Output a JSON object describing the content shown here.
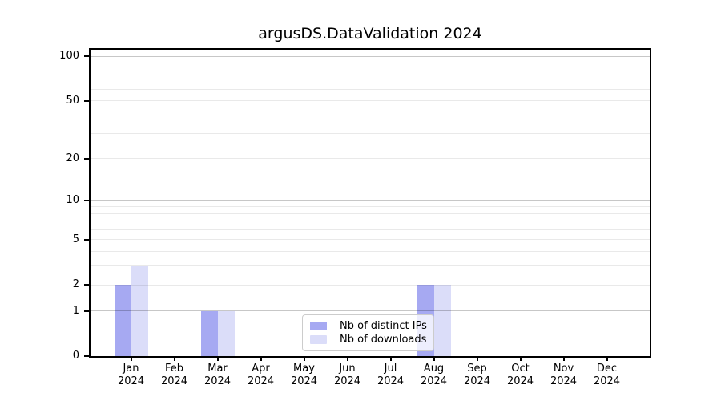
{
  "chart_data": {
    "type": "bar",
    "title": "argusDS.DataValidation 2024",
    "xlabel": "",
    "ylabel": "",
    "categories": [
      "Jan",
      "Feb",
      "Mar",
      "Apr",
      "May",
      "Jun",
      "Jul",
      "Aug",
      "Sep",
      "Oct",
      "Nov",
      "Dec"
    ],
    "x_year_line": "2024",
    "series": [
      {
        "name": "Nb of distinct IPs",
        "color": "#a6a9f2",
        "values": [
          2,
          0,
          1,
          0,
          0,
          0,
          0,
          2,
          0,
          0,
          0,
          0
        ]
      },
      {
        "name": "Nb of downloads",
        "color": "#dbddf9",
        "values": [
          3,
          0,
          1,
          0,
          0,
          0,
          0,
          2,
          0,
          0,
          0,
          0
        ]
      }
    ],
    "yscale": "log1p",
    "ylim": [
      0,
      111
    ],
    "yticks": [
      0,
      1,
      2,
      5,
      10,
      20,
      50,
      100
    ],
    "grid": true,
    "gridlines_light": [
      2,
      3,
      4,
      5,
      6,
      7,
      8,
      9,
      20,
      30,
      40,
      50,
      60,
      70,
      80,
      90
    ],
    "gridlines_dark": [
      1,
      10,
      100
    ],
    "legend": {
      "position": "lower center"
    }
  }
}
